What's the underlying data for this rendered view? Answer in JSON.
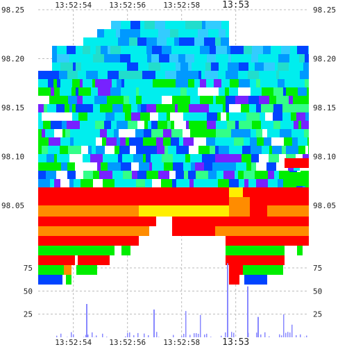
{
  "chart_data": {
    "type": "heatmap",
    "title": "",
    "xlabel": "",
    "ylabel": "",
    "x_ticks": [
      {
        "label": "13:52:54",
        "t": 0
      },
      {
        "label": "13:52:56",
        "t": 2
      },
      {
        "label": "13:52:58",
        "t": 4
      },
      {
        "label": "13:53",
        "t": 6
      }
    ],
    "x_range": [
      -1.3,
      8.7
    ],
    "price_ticks": [
      "98.25",
      "98.20",
      "98.15",
      "98.10",
      "98.05"
    ],
    "price_range": [
      98.025,
      98.25
    ],
    "volume_ticks": [
      "75",
      "50",
      "25"
    ],
    "volume_range": [
      0,
      75
    ],
    "grid": true,
    "colors": {
      "red": "#ff0000",
      "orange": "#ff8c00",
      "yellow": "#ffee00",
      "green": "#00ee00",
      "cyan": "#00eeee",
      "blue": "#0044ff",
      "purple": "#7722ff",
      "volume": "#8888ff"
    }
  }
}
